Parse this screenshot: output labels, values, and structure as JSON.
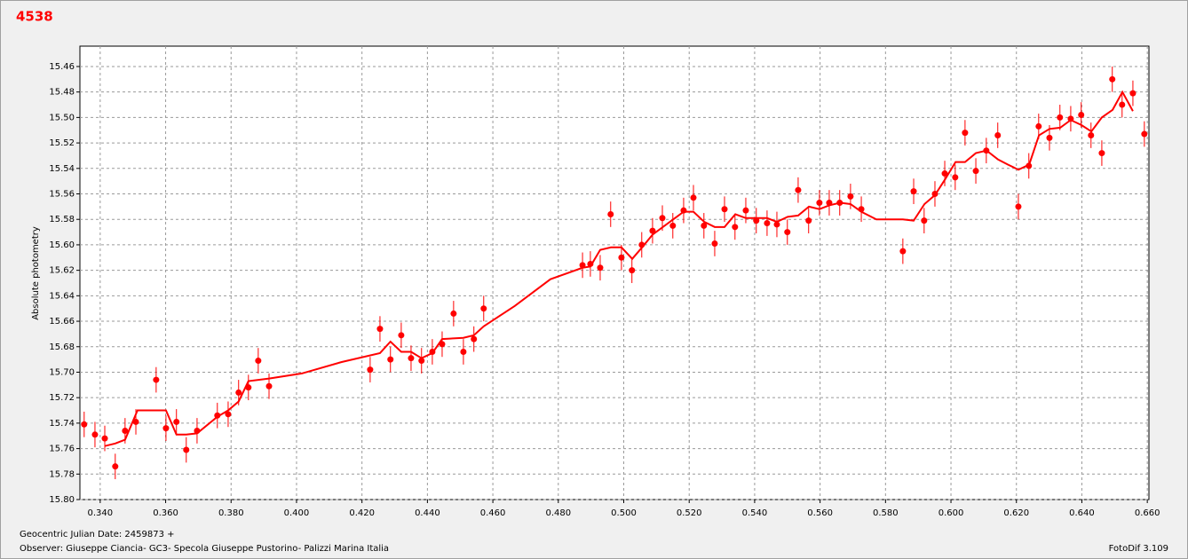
{
  "chart_data": {
    "type": "scatter",
    "title": "4538",
    "ylabel": "Absolute photometry",
    "xlabel": "Geocentric Julian Date: 2459873 +",
    "observer": "Observer: Giuseppe Ciancia- GC3- Specola Giuseppe Pustorino- Palizzi Marina Italia",
    "software": "FotoDif 3.109",
    "xlim": [
      0.3338,
      0.6605
    ],
    "ylim": [
      15.444,
      15.8
    ],
    "y_inverted": true,
    "grid": true,
    "xticks": [
      {
        "value": 0.34,
        "label": "0.340"
      },
      {
        "value": 0.36,
        "label": "0.360"
      },
      {
        "value": 0.38,
        "label": "0.380"
      },
      {
        "value": 0.4,
        "label": "0.400"
      },
      {
        "value": 0.42,
        "label": "0.420"
      },
      {
        "value": 0.44,
        "label": "0.440"
      },
      {
        "value": 0.46,
        "label": "0.460"
      },
      {
        "value": 0.48,
        "label": "0.480"
      },
      {
        "value": 0.5,
        "label": "0.500"
      },
      {
        "value": 0.52,
        "label": "0.520"
      },
      {
        "value": 0.54,
        "label": "0.540"
      },
      {
        "value": 0.56,
        "label": "0.560"
      },
      {
        "value": 0.58,
        "label": "0.580"
      },
      {
        "value": 0.6,
        "label": "0.600"
      },
      {
        "value": 0.62,
        "label": "0.620"
      },
      {
        "value": 0.64,
        "label": "0.640"
      },
      {
        "value": 0.66,
        "label": "0.660"
      }
    ],
    "yticks": [
      15.46,
      15.48,
      {
        "value": 15.5,
        "label": "15.50"
      },
      15.52,
      15.54,
      15.56,
      15.58,
      {
        "value": 15.6,
        "label": "15.60"
      },
      15.62,
      15.64,
      15.66,
      15.68,
      {
        "value": 15.7,
        "label": "15.70"
      },
      15.72,
      15.74,
      15.76,
      15.78,
      {
        "value": 15.8,
        "label": "15.80"
      }
    ],
    "series": [
      {
        "type": "scatter",
        "color": "#ff0000",
        "error": 0.01,
        "x": [
          0.3351,
          0.3384,
          0.3414,
          0.3446,
          0.3476,
          0.3509,
          0.3571,
          0.3601,
          0.3633,
          0.3663,
          0.3696,
          0.3758,
          0.3791,
          0.3823,
          0.3853,
          0.3883,
          0.3916,
          0.4225,
          0.4255,
          0.4287,
          0.432,
          0.435,
          0.4382,
          0.4415,
          0.4445,
          0.448,
          0.451,
          0.4542,
          0.4572,
          0.4874,
          0.4898,
          0.4928,
          0.496,
          0.4993,
          0.5025,
          0.5055,
          0.5088,
          0.5118,
          0.515,
          0.5183,
          0.5213,
          0.5245,
          0.5278,
          0.5308,
          0.534,
          0.5373,
          0.5405,
          0.5438,
          0.5468,
          0.55,
          0.5533,
          0.5565,
          0.5598,
          0.5628,
          0.566,
          0.5693,
          0.5726,
          0.5853,
          0.5886,
          0.5918,
          0.5951,
          0.5981,
          0.6013,
          0.6043,
          0.6076,
          0.6108,
          0.6143,
          0.6206,
          0.6238,
          0.6268,
          0.6301,
          0.6333,
          0.6366,
          0.6398,
          0.6428,
          0.6461,
          0.6493,
          0.6523,
          0.6556,
          0.6591
        ],
        "values": [
          15.741,
          15.749,
          15.752,
          15.774,
          15.746,
          15.739,
          15.706,
          15.744,
          15.739,
          15.761,
          15.746,
          15.734,
          15.733,
          15.716,
          15.712,
          15.691,
          15.711,
          15.698,
          15.666,
          15.69,
          15.671,
          15.689,
          15.691,
          15.684,
          15.678,
          15.654,
          15.684,
          15.674,
          15.65,
          15.616,
          15.615,
          15.618,
          15.576,
          15.61,
          15.62,
          15.6,
          15.589,
          15.579,
          15.585,
          15.573,
          15.563,
          15.585,
          15.599,
          15.572,
          15.586,
          15.573,
          15.581,
          15.583,
          15.584,
          15.59,
          15.557,
          15.581,
          15.567,
          15.567,
          15.567,
          15.562,
          15.572,
          15.605,
          15.558,
          15.581,
          15.56,
          15.544,
          15.547,
          15.512,
          15.542,
          15.526,
          15.514,
          15.57,
          15.538,
          15.507,
          15.516,
          15.5,
          15.501,
          15.498,
          15.514,
          15.528,
          15.47,
          15.49,
          15.481,
          15.513
        ]
      },
      {
        "type": "line",
        "color": "#ff0000",
        "x": [
          0.3414,
          0.3446,
          0.3476,
          0.3514,
          0.3601,
          0.3633,
          0.3663,
          0.3696,
          0.3758,
          0.3791,
          0.3823,
          0.3853,
          0.3916,
          0.4016,
          0.4138,
          0.4255,
          0.4287,
          0.432,
          0.435,
          0.4382,
          0.4415,
          0.4445,
          0.451,
          0.4542,
          0.4572,
          0.4667,
          0.4776,
          0.4874,
          0.4898,
          0.4928,
          0.4961,
          0.4993,
          0.5026,
          0.5056,
          0.5088,
          0.5183,
          0.5213,
          0.5246,
          0.5278,
          0.5308,
          0.5341,
          0.5373,
          0.5438,
          0.5468,
          0.5501,
          0.5533,
          0.5566,
          0.5598,
          0.5628,
          0.5661,
          0.5693,
          0.5726,
          0.5772,
          0.5853,
          0.5886,
          0.5919,
          0.5951,
          0.5981,
          0.6014,
          0.6043,
          0.6076,
          0.6109,
          0.6144,
          0.6174,
          0.6206,
          0.6239,
          0.6269,
          0.6301,
          0.6334,
          0.6366,
          0.6399,
          0.6429,
          0.6461,
          0.6494,
          0.6524,
          0.6556
        ],
        "values": [
          15.758,
          15.756,
          15.753,
          15.73,
          15.73,
          15.749,
          15.749,
          15.748,
          15.735,
          15.73,
          15.723,
          15.707,
          15.705,
          15.701,
          15.692,
          15.685,
          15.676,
          15.684,
          15.684,
          15.689,
          15.685,
          15.674,
          15.673,
          15.671,
          15.664,
          15.648,
          15.627,
          15.618,
          15.617,
          15.604,
          15.602,
          15.602,
          15.611,
          15.602,
          15.592,
          15.574,
          15.574,
          15.582,
          15.586,
          15.586,
          15.576,
          15.579,
          15.579,
          15.582,
          15.578,
          15.577,
          15.57,
          15.572,
          15.569,
          15.567,
          15.568,
          15.574,
          15.58,
          15.58,
          15.581,
          15.568,
          15.561,
          15.549,
          15.535,
          15.535,
          15.528,
          15.526,
          15.533,
          15.537,
          15.541,
          15.537,
          15.514,
          15.509,
          15.508,
          15.502,
          15.506,
          15.511,
          15.5,
          15.494,
          15.48,
          15.495
        ]
      }
    ]
  }
}
